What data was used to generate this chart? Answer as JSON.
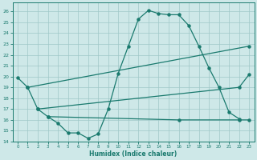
{
  "xlabel": "Humidex (Indice chaleur)",
  "xlim": [
    -0.5,
    23.5
  ],
  "ylim": [
    14,
    26.8
  ],
  "yticks": [
    14,
    15,
    16,
    17,
    18,
    19,
    20,
    21,
    22,
    23,
    24,
    25,
    26
  ],
  "xticks": [
    0,
    1,
    2,
    3,
    4,
    5,
    6,
    7,
    8,
    9,
    10,
    11,
    12,
    13,
    14,
    15,
    16,
    17,
    18,
    19,
    20,
    21,
    22,
    23
  ],
  "bg_color": "#cee8e8",
  "line_color": "#1a7a6e",
  "grid_color": "#a0c8c8",
  "line1_x": [
    0,
    1,
    2,
    3,
    4,
    5,
    6,
    7,
    8,
    9,
    10,
    11,
    12,
    13,
    14,
    15,
    16,
    17,
    18,
    19,
    20,
    21,
    22
  ],
  "line1_y": [
    19.9,
    19.0,
    17.0,
    16.3,
    15.7,
    14.8,
    14.8,
    14.3,
    14.7,
    17.0,
    20.3,
    22.8,
    25.3,
    26.1,
    25.8,
    25.7,
    25.7,
    24.7,
    22.8,
    20.8,
    19.0,
    16.7,
    16.1
  ],
  "line2_x": [
    1,
    23
  ],
  "line2_y": [
    19.0,
    22.8
  ],
  "line3_x": [
    2,
    22,
    23
  ],
  "line3_y": [
    17.0,
    19.0,
    20.2
  ],
  "line4_x": [
    3,
    16,
    22,
    23
  ],
  "line4_y": [
    16.3,
    16.0,
    16.0,
    16.0
  ]
}
